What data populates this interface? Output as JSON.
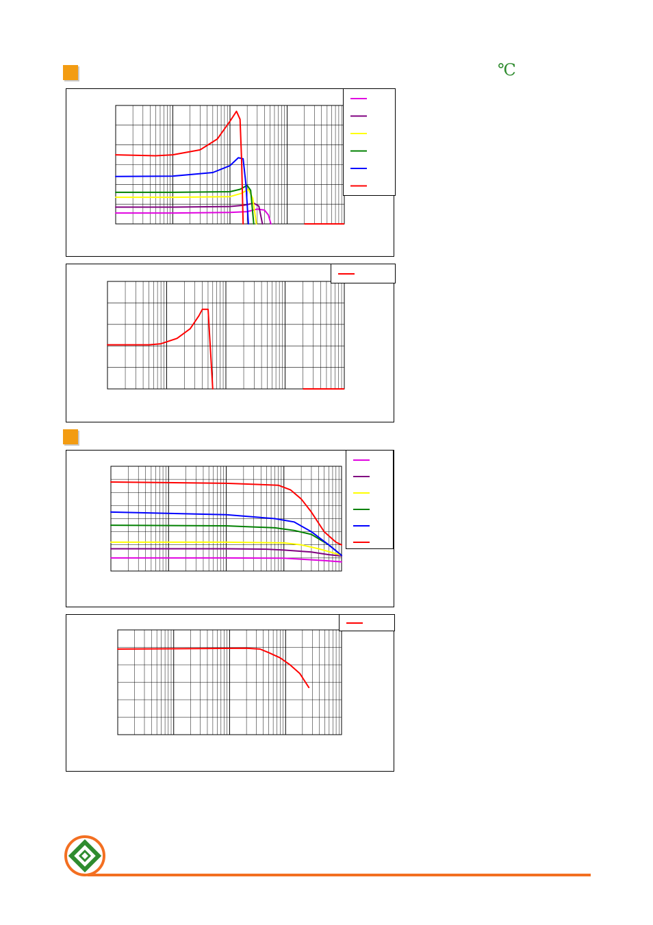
{
  "header": {
    "unit_symbol": "℃"
  },
  "colors": {
    "accent_square": "#f39c12",
    "footer_line": "#f36f21",
    "logo_ring": "#f36f21",
    "logo_inner": "#2e8b2e"
  },
  "chart_data": [
    {
      "type": "line",
      "xscale": "log",
      "xlim": [
        1,
        10000
      ],
      "ylim": [
        0,
        6
      ],
      "grid": true,
      "legend": "top-right",
      "series": [
        {
          "color": "#e000e0",
          "points": [
            [
              1,
              0.55
            ],
            [
              10,
              0.55
            ],
            [
              100,
              0.58
            ],
            [
              200,
              0.62
            ],
            [
              300,
              0.75
            ],
            [
              400,
              0.7
            ],
            [
              470,
              0.45
            ],
            [
              520,
              0.0
            ]
          ]
        },
        {
          "color": "#800080",
          "points": [
            [
              1,
              0.85
            ],
            [
              10,
              0.85
            ],
            [
              100,
              0.88
            ],
            [
              180,
              0.95
            ],
            [
              260,
              1.05
            ],
            [
              320,
              0.9
            ],
            [
              370,
              0.0
            ]
          ]
        },
        {
          "color": "#ffff00",
          "points": [
            [
              1,
              1.35
            ],
            [
              10,
              1.35
            ],
            [
              100,
              1.38
            ],
            [
              160,
              1.55
            ],
            [
              210,
              1.75
            ],
            [
              250,
              1.3
            ],
            [
              290,
              0.0
            ]
          ]
        },
        {
          "color": "#008000",
          "points": [
            [
              1,
              1.6
            ],
            [
              10,
              1.6
            ],
            [
              100,
              1.63
            ],
            [
              150,
              1.75
            ],
            [
              200,
              1.95
            ],
            [
              230,
              1.7
            ],
            [
              260,
              0.0
            ]
          ]
        },
        {
          "color": "#0000ff",
          "points": [
            [
              1,
              2.4
            ],
            [
              10,
              2.42
            ],
            [
              50,
              2.6
            ],
            [
              100,
              2.95
            ],
            [
              140,
              3.35
            ],
            [
              170,
              3.3
            ],
            [
              190,
              2.0
            ],
            [
              210,
              0.0
            ]
          ]
        },
        {
          "color": "#ff0000",
          "points": [
            [
              1,
              3.5
            ],
            [
              5,
              3.45
            ],
            [
              10,
              3.5
            ],
            [
              30,
              3.75
            ],
            [
              60,
              4.3
            ],
            [
              100,
              5.2
            ],
            [
              130,
              5.7
            ],
            [
              150,
              5.3
            ],
            [
              160,
              3.2
            ],
            [
              170,
              0.0
            ]
          ],
          "tail": [
            [
              2000,
              0.0
            ],
            [
              10000,
              0.0
            ]
          ]
        }
      ]
    },
    {
      "type": "line",
      "xscale": "log",
      "xlim": [
        1,
        10000
      ],
      "ylim": [
        0,
        5
      ],
      "grid": true,
      "legend": "top-right",
      "series": [
        {
          "color": "#ff0000",
          "points": [
            [
              1,
              2.05
            ],
            [
              5,
              2.05
            ],
            [
              8,
              2.1
            ],
            [
              15,
              2.35
            ],
            [
              25,
              2.8
            ],
            [
              35,
              3.4
            ],
            [
              40,
              3.7
            ],
            [
              50,
              3.7
            ],
            [
              55,
              1.8
            ],
            [
              60,
              0.0
            ]
          ],
          "tail": [
            [
              2000,
              0.0
            ],
            [
              10000,
              0.0
            ]
          ]
        }
      ]
    },
    {
      "type": "line",
      "xscale": "log",
      "xlim": [
        1,
        10000
      ],
      "ylim": [
        0,
        8
      ],
      "grid": true,
      "legend": "top-right",
      "series": [
        {
          "color": "#e000e0",
          "points": [
            [
              1,
              1.0
            ],
            [
              100,
              1.0
            ],
            [
              1000,
              0.98
            ],
            [
              2000,
              0.9
            ],
            [
              5000,
              0.8
            ],
            [
              10000,
              0.7
            ]
          ]
        },
        {
          "color": "#800080",
          "points": [
            [
              1,
              1.7
            ],
            [
              100,
              1.7
            ],
            [
              500,
              1.67
            ],
            [
              1000,
              1.6
            ],
            [
              3000,
              1.45
            ],
            [
              6000,
              1.25
            ],
            [
              10000,
              1.15
            ]
          ]
        },
        {
          "color": "#ffff00",
          "points": [
            [
              1,
              2.2
            ],
            [
              100,
              2.2
            ],
            [
              1000,
              2.15
            ],
            [
              2000,
              2.0
            ],
            [
              4000,
              1.7
            ],
            [
              7000,
              1.4
            ],
            [
              10000,
              1.2
            ]
          ]
        },
        {
          "color": "#008000",
          "points": [
            [
              1,
              3.5
            ],
            [
              100,
              3.45
            ],
            [
              700,
              3.3
            ],
            [
              1500,
              3.1
            ],
            [
              3000,
              2.8
            ],
            [
              6000,
              2.0
            ],
            [
              10000,
              1.2
            ]
          ]
        },
        {
          "color": "#0000ff",
          "points": [
            [
              1,
              4.5
            ],
            [
              100,
              4.3
            ],
            [
              700,
              4.0
            ],
            [
              1500,
              3.75
            ],
            [
              3000,
              3.0
            ],
            [
              6000,
              2.0
            ],
            [
              10000,
              1.2
            ]
          ]
        },
        {
          "color": "#ff0000",
          "points": [
            [
              1,
              6.8
            ],
            [
              100,
              6.7
            ],
            [
              800,
              6.55
            ],
            [
              1300,
              6.2
            ],
            [
              2000,
              5.5
            ],
            [
              3000,
              4.5
            ],
            [
              5000,
              3.0
            ],
            [
              8000,
              2.2
            ],
            [
              10000,
              2.0
            ]
          ]
        }
      ]
    },
    {
      "type": "line",
      "xscale": "log",
      "xlim": [
        1,
        10000
      ],
      "ylim": [
        0,
        6
      ],
      "grid": true,
      "legend": "top-right",
      "series": [
        {
          "color": "#ff0000",
          "points": [
            [
              1,
              4.9
            ],
            [
              200,
              4.95
            ],
            [
              350,
              4.9
            ],
            [
              500,
              4.7
            ],
            [
              800,
              4.4
            ],
            [
              1200,
              4.0
            ],
            [
              1800,
              3.5
            ],
            [
              2600,
              2.7
            ]
          ]
        }
      ]
    }
  ]
}
